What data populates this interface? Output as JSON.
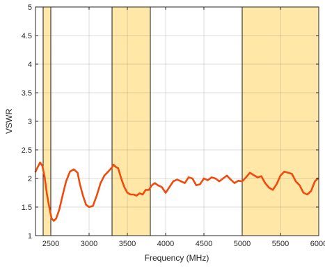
{
  "chart_data": {
    "type": "line",
    "title": "",
    "xlabel": "Frequency (MHz)",
    "ylabel": "VSWR",
    "xlim": [
      2300,
      6000
    ],
    "ylim": [
      1,
      5
    ],
    "xticks": [
      2500,
      3000,
      3500,
      4000,
      4500,
      5000,
      5500,
      6000
    ],
    "yticks": [
      1,
      1.5,
      2,
      2.5,
      3,
      3.5,
      4,
      4.5,
      5
    ],
    "xtick_labels": [
      "2500",
      "3000",
      "3500",
      "4000",
      "4500",
      "5000",
      "5500",
      "6000"
    ],
    "ytick_labels": [
      "1",
      "1.5",
      "2",
      "2.5",
      "3",
      "3.5",
      "4",
      "4.5",
      "5"
    ],
    "grid": true,
    "band_color": "#ffe7a8",
    "line_color": "#f04a0c",
    "bands": [
      {
        "x0": 2400,
        "x1": 2500
      },
      {
        "x0": 3300,
        "x1": 3800
      },
      {
        "x0": 5000,
        "x1": 6000
      }
    ],
    "series": [
      {
        "x": [
          2300,
          2330,
          2360,
          2390,
          2420,
          2450,
          2480,
          2510,
          2540,
          2570,
          2610,
          2650,
          2700,
          2750,
          2800,
          2850,
          2880,
          2920,
          2960,
          3000,
          3050,
          3100,
          3150,
          3200,
          3250,
          3290,
          3320,
          3350,
          3380,
          3420,
          3460,
          3500,
          3540,
          3580,
          3620,
          3660,
          3700,
          3740,
          3780,
          3820,
          3860,
          3900,
          3950,
          4000,
          4050,
          4100,
          4150,
          4200,
          4250,
          4300,
          4350,
          4400,
          4450,
          4500,
          4550,
          4600,
          4650,
          4700,
          4750,
          4800,
          4850,
          4900,
          4950,
          5000,
          5050,
          5100,
          5150,
          5200,
          5250,
          5300,
          5350,
          5400,
          5450,
          5500,
          5550,
          5600,
          5650,
          5700,
          5750,
          5800,
          5850,
          5900,
          5950,
          5990
        ],
        "y": [
          2.12,
          2.2,
          2.28,
          2.22,
          2.02,
          1.72,
          1.5,
          1.3,
          1.26,
          1.3,
          1.45,
          1.68,
          1.95,
          2.12,
          2.16,
          2.1,
          1.9,
          1.7,
          1.54,
          1.5,
          1.52,
          1.7,
          1.92,
          2.05,
          2.12,
          2.18,
          2.24,
          2.2,
          2.18,
          2.0,
          1.85,
          1.75,
          1.72,
          1.72,
          1.7,
          1.74,
          1.72,
          1.8,
          1.8,
          1.88,
          1.92,
          1.88,
          1.85,
          1.75,
          1.85,
          1.95,
          1.98,
          1.95,
          1.92,
          2.02,
          2.0,
          1.88,
          1.9,
          2.0,
          1.97,
          2.02,
          2.0,
          1.95,
          2.0,
          2.05,
          1.98,
          1.92,
          1.96,
          1.95,
          2.02,
          2.1,
          2.06,
          2.02,
          2.04,
          1.92,
          1.84,
          1.8,
          1.9,
          2.05,
          2.12,
          2.1,
          2.08,
          1.95,
          1.88,
          1.75,
          1.72,
          1.78,
          1.95,
          2.0
        ]
      }
    ]
  }
}
